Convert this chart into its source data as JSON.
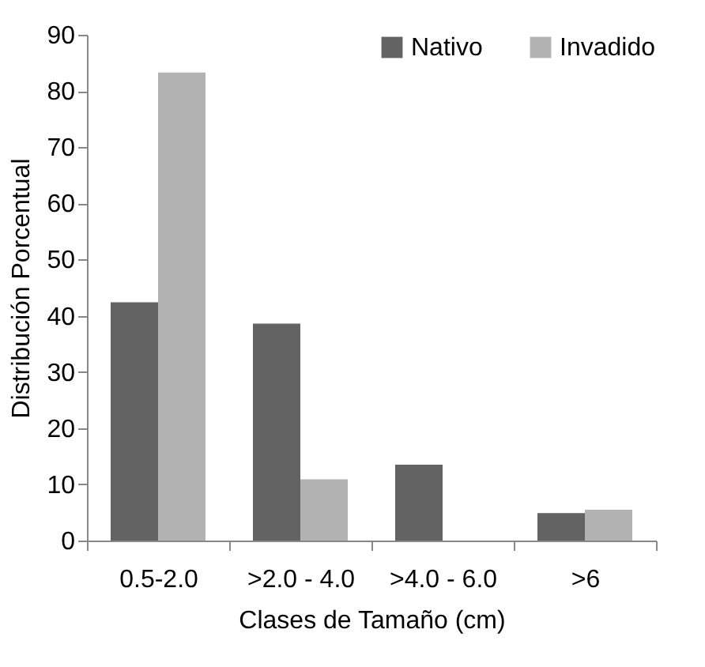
{
  "chart_data": {
    "type": "bar",
    "xlabel": "Clases de Tamaño (cm)",
    "ylabel": "Distribución Porcentual",
    "categories": [
      "0.5-2.0",
      ">2.0 - 4.0",
      ">4.0 - 6.0",
      ">6"
    ],
    "series": [
      {
        "name": "Nativo",
        "color": "#636363",
        "values": [
          42.4,
          38.6,
          13.5,
          4.9
        ]
      },
      {
        "name": "Invadido",
        "color": "#b2b2b2",
        "values": [
          83.3,
          10.9,
          0,
          5.5
        ]
      }
    ],
    "ylim": [
      0,
      90
    ],
    "yticks": [
      0,
      10,
      20,
      30,
      40,
      50,
      60,
      70,
      80,
      90
    ],
    "grid": false,
    "legend": "top right"
  }
}
